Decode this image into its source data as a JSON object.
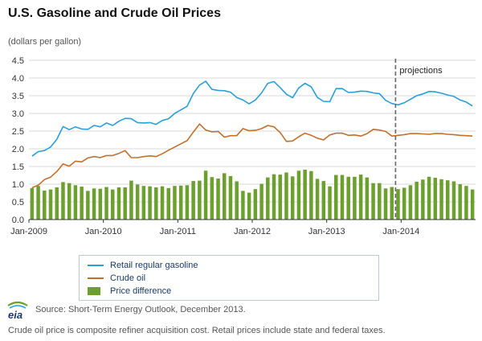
{
  "title": "U.S. Gasoline and Crude Oil Prices",
  "unit_label": "(dollars per gallon)",
  "projection_label": "projections",
  "source_text": "Source: Short-Term Energy Outlook, December 2013.",
  "footnote": "Crude oil price is composite refiner acquisition cost. Retail prices include state and federal taxes.",
  "logo_text": "eia",
  "colors": {
    "gasoline": "#2a9fd8",
    "crude": "#c2702a",
    "difference": "#6b9f2e",
    "grid": "#d9d9d9",
    "projection_line": "#666666"
  },
  "chart_data": {
    "type": "bar+line",
    "xlabel": "",
    "ylabel": "(dollars per gallon)",
    "ylim": [
      0,
      4.5
    ],
    "yticks": [
      "0.0",
      "0.5",
      "1.0",
      "1.5",
      "2.0",
      "2.5",
      "3.0",
      "3.5",
      "4.0",
      "4.5"
    ],
    "xticks": [
      "Jan-2009",
      "Jan-2010",
      "Jan-2011",
      "Jan-2012",
      "Jan-2013",
      "Jan-2014"
    ],
    "grid": "horizontal",
    "projection_start": "Dec-2013",
    "series": [
      {
        "name": "Retail regular gasoline",
        "values": [
          1.79,
          1.92,
          1.95,
          2.05,
          2.27,
          2.63,
          2.54,
          2.62,
          2.56,
          2.55,
          2.66,
          2.62,
          2.73,
          2.66,
          2.78,
          2.86,
          2.85,
          2.74,
          2.73,
          2.74,
          2.69,
          2.8,
          2.85,
          3.0,
          3.1,
          3.2,
          3.56,
          3.8,
          3.91,
          3.68,
          3.65,
          3.64,
          3.6,
          3.45,
          3.38,
          3.27,
          3.38,
          3.58,
          3.85,
          3.9,
          3.73,
          3.54,
          3.44,
          3.72,
          3.85,
          3.75,
          3.45,
          3.34,
          3.33,
          3.7,
          3.7,
          3.59,
          3.6,
          3.63,
          3.62,
          3.58,
          3.56,
          3.37,
          3.28,
          3.24,
          3.3,
          3.4,
          3.5,
          3.55,
          3.62,
          3.61,
          3.57,
          3.52,
          3.48,
          3.38,
          3.32,
          3.21
        ]
      },
      {
        "name": "Crude oil",
        "values": [
          0.9,
          0.97,
          1.13,
          1.2,
          1.36,
          1.57,
          1.51,
          1.65,
          1.63,
          1.74,
          1.78,
          1.75,
          1.81,
          1.81,
          1.87,
          1.95,
          1.75,
          1.75,
          1.78,
          1.8,
          1.78,
          1.86,
          1.96,
          2.05,
          2.14,
          2.23,
          2.47,
          2.7,
          2.53,
          2.48,
          2.49,
          2.33,
          2.37,
          2.37,
          2.57,
          2.51,
          2.52,
          2.57,
          2.66,
          2.62,
          2.46,
          2.21,
          2.22,
          2.34,
          2.44,
          2.38,
          2.3,
          2.25,
          2.39,
          2.44,
          2.44,
          2.38,
          2.39,
          2.36,
          2.43,
          2.55,
          2.53,
          2.49,
          2.36,
          2.38,
          2.4,
          2.43,
          2.43,
          2.42,
          2.41,
          2.43,
          2.43,
          2.41,
          2.4,
          2.38,
          2.37,
          2.36
        ]
      },
      {
        "name": "Price difference",
        "values": [
          0.89,
          0.95,
          0.82,
          0.85,
          0.91,
          1.06,
          1.03,
          0.97,
          0.93,
          0.81,
          0.88,
          0.87,
          0.92,
          0.85,
          0.91,
          0.91,
          1.1,
          0.99,
          0.95,
          0.94,
          0.91,
          0.94,
          0.89,
          0.95,
          0.96,
          0.97,
          1.09,
          1.1,
          1.38,
          1.2,
          1.16,
          1.31,
          1.23,
          1.08,
          0.81,
          0.76,
          0.86,
          1.01,
          1.19,
          1.28,
          1.27,
          1.33,
          1.22,
          1.38,
          1.41,
          1.37,
          1.15,
          1.09,
          0.94,
          1.26,
          1.26,
          1.21,
          1.21,
          1.27,
          1.19,
          1.03,
          1.03,
          0.88,
          0.92,
          0.86,
          0.9,
          0.97,
          1.07,
          1.13,
          1.21,
          1.18,
          1.14,
          1.11,
          1.08,
          1.0,
          0.95,
          0.85
        ]
      }
    ]
  }
}
